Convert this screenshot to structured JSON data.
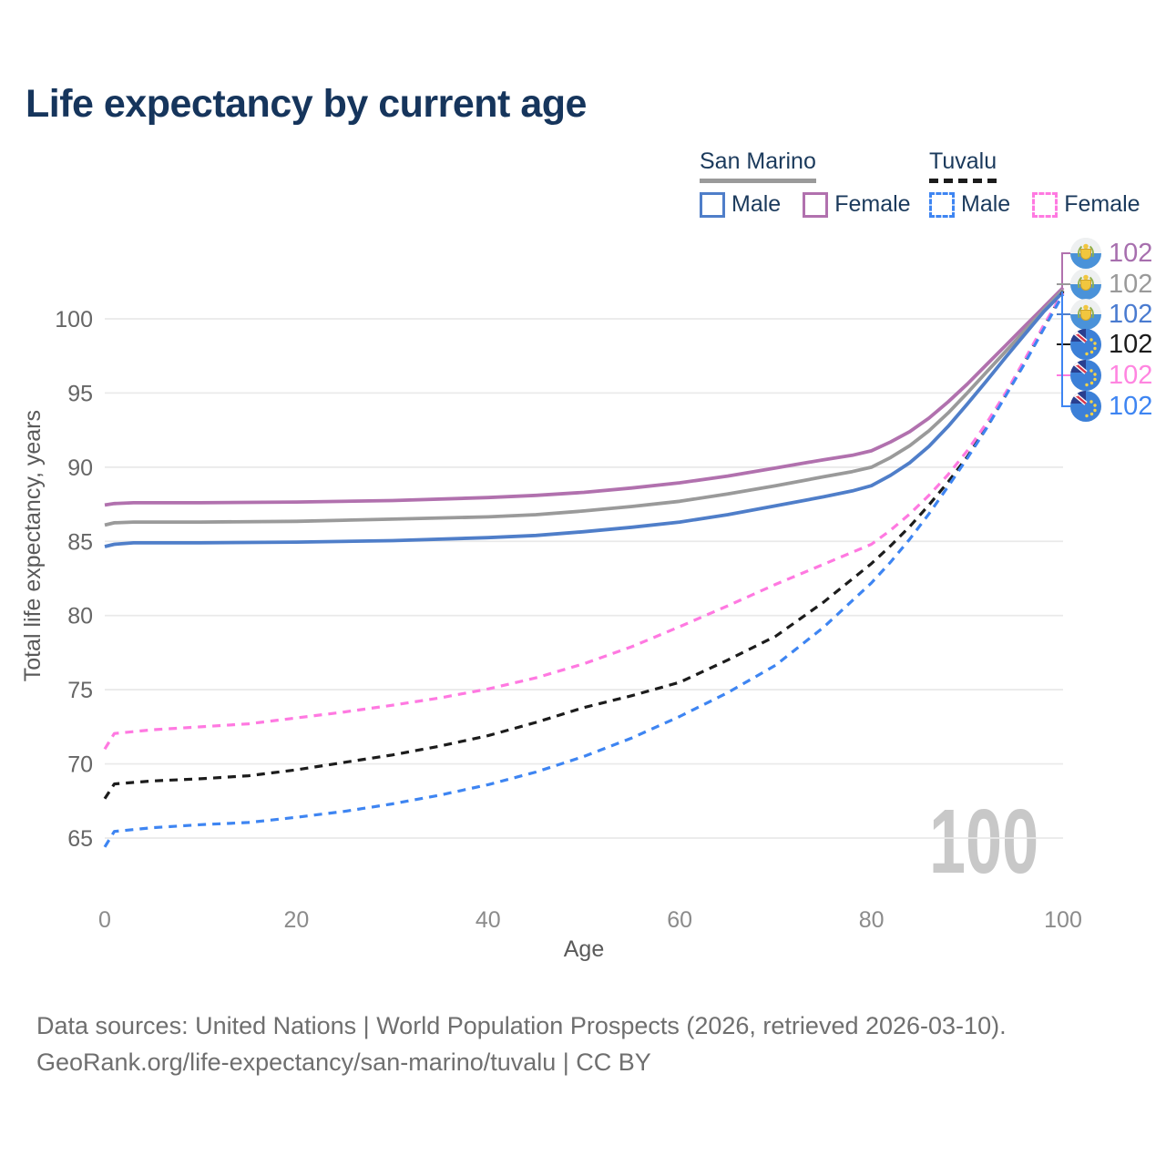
{
  "header": {
    "title": "Life expectancy by current age"
  },
  "legend": {
    "groups": [
      {
        "name": "San Marino",
        "line_style": "solid",
        "underline_color": "#9a9a9a",
        "items": [
          {
            "label": "Male",
            "color": "#4f7ec9"
          },
          {
            "label": "Female",
            "color": "#b171ae"
          }
        ]
      },
      {
        "name": "Tuvalu",
        "line_style": "dashed",
        "underline_color": "#1c1c1c",
        "items": [
          {
            "label": "Male",
            "color": "#3e85f2"
          },
          {
            "label": "Female",
            "color": "#ff79e1"
          }
        ]
      }
    ]
  },
  "watermark": "100",
  "footer": {
    "line1": "Data sources: United Nations | World Population Prospects (2026, retrieved 2026-03-10).",
    "line2": "GeoRank.org/life-expectancy/san-marino/tuvalu | CC BY"
  },
  "chart_data": {
    "type": "line",
    "title": "Life expectancy by current age",
    "xlabel": "Age",
    "ylabel": "Total life expectancy, years",
    "x_ticks": [
      0,
      20,
      40,
      60,
      80,
      100
    ],
    "y_ticks": [
      65,
      70,
      75,
      80,
      85,
      90,
      95,
      100
    ],
    "xlim": [
      0,
      100
    ],
    "ylim": [
      63,
      103
    ],
    "grid": "horizontal-only",
    "legend_position": "top-right",
    "series": [
      {
        "name": "San Marino Female",
        "country": "San Marino",
        "sex": "Female",
        "line_style": "solid",
        "color": "#b171ae",
        "label_color": "#a76fae",
        "flag": "san-marino",
        "end_label": "102",
        "points": [
          [
            0,
            87.45
          ],
          [
            1,
            87.55
          ],
          [
            3,
            87.6
          ],
          [
            10,
            87.6
          ],
          [
            20,
            87.65
          ],
          [
            30,
            87.75
          ],
          [
            40,
            87.95
          ],
          [
            45,
            88.1
          ],
          [
            50,
            88.3
          ],
          [
            55,
            88.6
          ],
          [
            60,
            88.95
          ],
          [
            65,
            89.4
          ],
          [
            70,
            89.95
          ],
          [
            75,
            90.5
          ],
          [
            78,
            90.8
          ],
          [
            80,
            91.1
          ],
          [
            82,
            91.7
          ],
          [
            84,
            92.4
          ],
          [
            86,
            93.3
          ],
          [
            88,
            94.4
          ],
          [
            90,
            95.6
          ],
          [
            92,
            96.9
          ],
          [
            94,
            98.2
          ],
          [
            96,
            99.5
          ],
          [
            98,
            100.8
          ],
          [
            100,
            102.1
          ]
        ]
      },
      {
        "name": "San Marino Both sexes",
        "country": "San Marino",
        "sex": "Both",
        "line_style": "solid",
        "color": "#9a9a9a",
        "label_color": "#9a9a9a",
        "flag": "san-marino",
        "end_label": "102",
        "points": [
          [
            0,
            86.1
          ],
          [
            1,
            86.25
          ],
          [
            3,
            86.3
          ],
          [
            10,
            86.3
          ],
          [
            20,
            86.35
          ],
          [
            30,
            86.5
          ],
          [
            40,
            86.65
          ],
          [
            45,
            86.8
          ],
          [
            50,
            87.05
          ],
          [
            55,
            87.35
          ],
          [
            60,
            87.7
          ],
          [
            65,
            88.2
          ],
          [
            70,
            88.75
          ],
          [
            75,
            89.35
          ],
          [
            78,
            89.7
          ],
          [
            80,
            90.0
          ],
          [
            82,
            90.65
          ],
          [
            84,
            91.45
          ],
          [
            86,
            92.45
          ],
          [
            88,
            93.65
          ],
          [
            90,
            95.0
          ],
          [
            92,
            96.4
          ],
          [
            94,
            97.8
          ],
          [
            96,
            99.2
          ],
          [
            98,
            100.6
          ],
          [
            100,
            101.95
          ]
        ]
      },
      {
        "name": "San Marino Male",
        "country": "San Marino",
        "sex": "Male",
        "line_style": "solid",
        "color": "#4f7ec9",
        "label_color": "#4a7bd0",
        "flag": "san-marino",
        "end_label": "102",
        "points": [
          [
            0,
            84.65
          ],
          [
            1,
            84.8
          ],
          [
            3,
            84.9
          ],
          [
            10,
            84.9
          ],
          [
            20,
            84.95
          ],
          [
            30,
            85.05
          ],
          [
            40,
            85.25
          ],
          [
            45,
            85.4
          ],
          [
            50,
            85.65
          ],
          [
            55,
            85.95
          ],
          [
            60,
            86.3
          ],
          [
            65,
            86.8
          ],
          [
            70,
            87.4
          ],
          [
            75,
            88.0
          ],
          [
            78,
            88.4
          ],
          [
            80,
            88.75
          ],
          [
            82,
            89.45
          ],
          [
            84,
            90.3
          ],
          [
            86,
            91.4
          ],
          [
            88,
            92.75
          ],
          [
            90,
            94.25
          ],
          [
            92,
            95.8
          ],
          [
            94,
            97.4
          ],
          [
            96,
            98.95
          ],
          [
            98,
            100.5
          ],
          [
            100,
            101.8
          ]
        ]
      },
      {
        "name": "Tuvalu Both sexes",
        "country": "Tuvalu",
        "sex": "Both",
        "line_style": "dashed",
        "color": "#1c1c1c",
        "label_color": "#1c1c1c",
        "flag": "tuvalu",
        "end_label": "102",
        "points": [
          [
            0,
            67.65
          ],
          [
            1,
            68.65
          ],
          [
            5,
            68.85
          ],
          [
            10,
            69.0
          ],
          [
            15,
            69.2
          ],
          [
            20,
            69.6
          ],
          [
            25,
            70.1
          ],
          [
            30,
            70.6
          ],
          [
            35,
            71.2
          ],
          [
            40,
            71.9
          ],
          [
            45,
            72.8
          ],
          [
            50,
            73.8
          ],
          [
            55,
            74.6
          ],
          [
            60,
            75.5
          ],
          [
            65,
            77.0
          ],
          [
            70,
            78.6
          ],
          [
            75,
            80.9
          ],
          [
            80,
            83.5
          ],
          [
            82,
            84.7
          ],
          [
            84,
            86.0
          ],
          [
            86,
            87.45
          ],
          [
            88,
            89.0
          ],
          [
            90,
            90.7
          ],
          [
            92,
            92.65
          ],
          [
            94,
            94.85
          ],
          [
            96,
            97.1
          ],
          [
            98,
            99.45
          ],
          [
            100,
            101.85
          ]
        ]
      },
      {
        "name": "Tuvalu Female",
        "country": "Tuvalu",
        "sex": "Female",
        "line_style": "dashed",
        "color": "#ff79e1",
        "label_color": "#ff85e0",
        "flag": "tuvalu",
        "end_label": "102",
        "points": [
          [
            0,
            71.0
          ],
          [
            1,
            72.05
          ],
          [
            5,
            72.3
          ],
          [
            10,
            72.5
          ],
          [
            15,
            72.7
          ],
          [
            20,
            73.1
          ],
          [
            25,
            73.5
          ],
          [
            30,
            73.95
          ],
          [
            35,
            74.45
          ],
          [
            40,
            75.05
          ],
          [
            45,
            75.8
          ],
          [
            50,
            76.75
          ],
          [
            55,
            77.9
          ],
          [
            60,
            79.25
          ],
          [
            65,
            80.65
          ],
          [
            70,
            82.1
          ],
          [
            75,
            83.45
          ],
          [
            80,
            84.8
          ],
          [
            82,
            85.75
          ],
          [
            84,
            86.85
          ],
          [
            86,
            88.1
          ],
          [
            88,
            89.5
          ],
          [
            90,
            91.1
          ],
          [
            92,
            92.95
          ],
          [
            94,
            95.0
          ],
          [
            96,
            97.25
          ],
          [
            98,
            99.6
          ],
          [
            100,
            101.75
          ]
        ]
      },
      {
        "name": "Tuvalu Male",
        "country": "Tuvalu",
        "sex": "Male",
        "line_style": "dashed",
        "color": "#3e85f2",
        "label_color": "#3e85f2",
        "flag": "tuvalu",
        "end_label": "102",
        "points": [
          [
            0,
            64.4
          ],
          [
            1,
            65.45
          ],
          [
            5,
            65.7
          ],
          [
            10,
            65.9
          ],
          [
            15,
            66.05
          ],
          [
            20,
            66.4
          ],
          [
            25,
            66.8
          ],
          [
            30,
            67.3
          ],
          [
            35,
            67.9
          ],
          [
            40,
            68.6
          ],
          [
            45,
            69.45
          ],
          [
            50,
            70.5
          ],
          [
            55,
            71.75
          ],
          [
            60,
            73.2
          ],
          [
            65,
            74.8
          ],
          [
            70,
            76.65
          ],
          [
            75,
            79.2
          ],
          [
            80,
            82.2
          ],
          [
            82,
            83.6
          ],
          [
            84,
            85.15
          ],
          [
            86,
            86.85
          ],
          [
            88,
            88.7
          ],
          [
            90,
            90.6
          ],
          [
            92,
            92.6
          ],
          [
            94,
            94.8
          ],
          [
            96,
            97.0
          ],
          [
            98,
            99.35
          ],
          [
            100,
            101.65
          ]
        ]
      }
    ]
  }
}
